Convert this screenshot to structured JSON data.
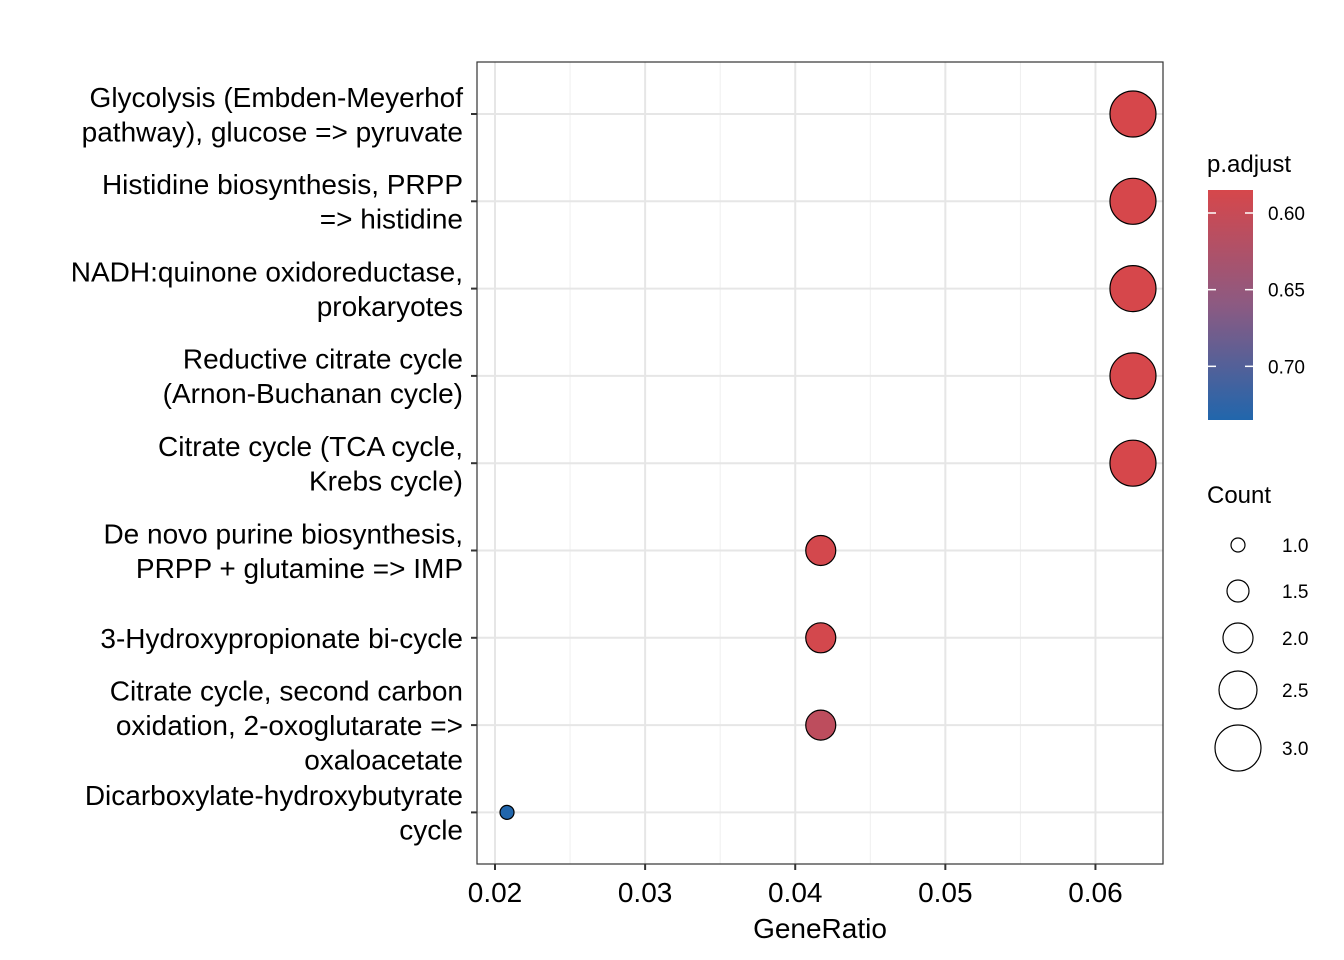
{
  "chart_data": {
    "type": "scatter",
    "xlabel": "GeneRatio",
    "x_ticks": [
      "0.02",
      "0.03",
      "0.04",
      "0.05",
      "0.06"
    ],
    "x_tick_values": [
      0.02,
      0.03,
      0.04,
      0.05,
      0.06
    ],
    "xlim": [
      0.0188,
      0.0645
    ],
    "grid": true,
    "color_low": "#D6474B",
    "color_high": "#2166AC",
    "color_legend": {
      "title": "p.adjust",
      "ticks": [
        "0.60",
        "0.65",
        "0.70"
      ],
      "tick_values": [
        0.6,
        0.65,
        0.7
      ],
      "range": [
        0.585,
        0.735
      ]
    },
    "size_legend": {
      "title": "Count",
      "labels": [
        "1.0",
        "1.5",
        "2.0",
        "2.5",
        "3.0"
      ],
      "values": [
        1.0,
        1.5,
        2.0,
        2.5,
        3.0
      ]
    },
    "points": [
      {
        "category": "Glycolysis (Embden-Meyerhof pathway), glucose => pyruvate",
        "lines": [
          "Glycolysis (Embden-Meyerhof",
          "pathway), glucose => pyruvate"
        ],
        "gene_ratio": 0.0625,
        "count": 3,
        "p_adjust": 0.585
      },
      {
        "category": "Histidine biosynthesis, PRPP => histidine",
        "lines": [
          "Histidine biosynthesis, PRPP",
          "=> histidine"
        ],
        "gene_ratio": 0.0625,
        "count": 3,
        "p_adjust": 0.585
      },
      {
        "category": "NADH:quinone oxidoreductase, prokaryotes",
        "lines": [
          "NADH:quinone oxidoreductase,",
          "prokaryotes"
        ],
        "gene_ratio": 0.0625,
        "count": 3,
        "p_adjust": 0.585
      },
      {
        "category": "Reductive citrate cycle (Arnon-Buchanan cycle)",
        "lines": [
          "Reductive citrate cycle",
          "(Arnon-Buchanan cycle)"
        ],
        "gene_ratio": 0.0625,
        "count": 3,
        "p_adjust": 0.585
      },
      {
        "category": "Citrate cycle (TCA cycle, Krebs cycle)",
        "lines": [
          "Citrate cycle (TCA cycle,",
          "Krebs cycle)"
        ],
        "gene_ratio": 0.0625,
        "count": 3,
        "p_adjust": 0.585
      },
      {
        "category": "De novo purine biosynthesis, PRPP + glutamine => IMP",
        "lines": [
          "De novo purine biosynthesis,",
          "PRPP + glutamine => IMP"
        ],
        "gene_ratio": 0.0417,
        "count": 2,
        "p_adjust": 0.588
      },
      {
        "category": "3-Hydroxypropionate bi-cycle",
        "lines": [
          "3-Hydroxypropionate bi-cycle"
        ],
        "gene_ratio": 0.0417,
        "count": 2,
        "p_adjust": 0.588
      },
      {
        "category": "Citrate cycle, second carbon oxidation, 2-oxoglutarate => oxaloacetate",
        "lines": [
          "Citrate cycle, second carbon",
          "oxidation, 2-oxoglutarate =>",
          "oxaloacetate"
        ],
        "gene_ratio": 0.0417,
        "count": 2,
        "p_adjust": 0.61
      },
      {
        "category": "Dicarboxylate-hydroxybutyrate cycle",
        "lines": [
          "Dicarboxylate-hydroxybutyrate",
          "cycle"
        ],
        "gene_ratio": 0.0208,
        "count": 1,
        "p_adjust": 0.735
      }
    ]
  }
}
